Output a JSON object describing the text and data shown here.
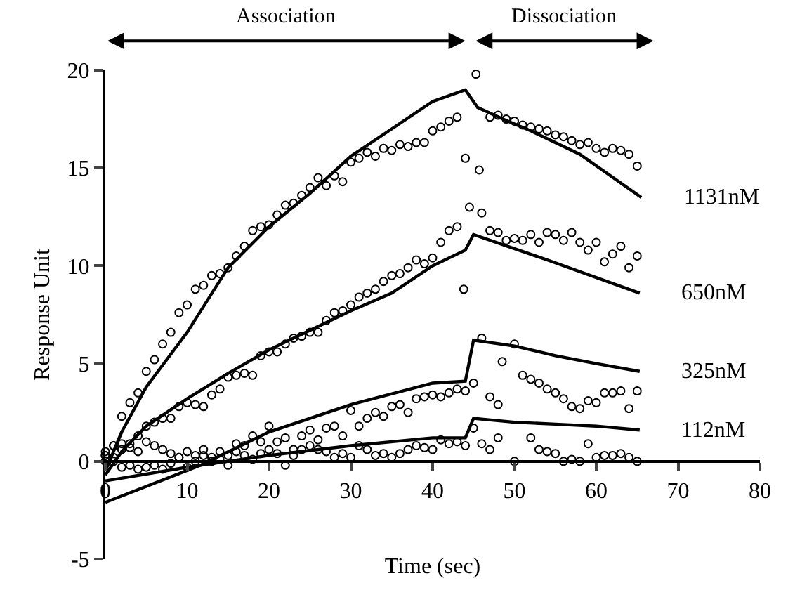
{
  "chart_data": {
    "type": "scatter",
    "xlabel": "Time (sec)",
    "ylabel": "Response Unit",
    "annotations": [
      "Association",
      "Dissociation"
    ],
    "xlim": [
      0,
      80
    ],
    "xticks": [
      0,
      10,
      20,
      30,
      40,
      50,
      60,
      70,
      80
    ],
    "ylim": [
      -5,
      20
    ],
    "yticks": [
      -5,
      0,
      5,
      10,
      15,
      20
    ],
    "legend": false,
    "marker": "circle",
    "series": [
      {
        "color": "#000000",
        "x": [
          0,
          1,
          2,
          3,
          4,
          5,
          6,
          7,
          8,
          9,
          10,
          11,
          12,
          13,
          14,
          15,
          16,
          17,
          18,
          19,
          20,
          21,
          22,
          23,
          24,
          25,
          26,
          27,
          28,
          29,
          30,
          31,
          32,
          33,
          34,
          35,
          36,
          37,
          38,
          39,
          40,
          41,
          42,
          43,
          44,
          45.3,
          45.7,
          47,
          48,
          49,
          50,
          51,
          52,
          53,
          54,
          55,
          56,
          57,
          58,
          59,
          60,
          61,
          62,
          63,
          64,
          65
        ],
        "values": [
          0.3,
          0.8,
          2.3,
          3.0,
          3.5,
          4.6,
          5.2,
          6.0,
          6.6,
          7.6,
          8.0,
          8.8,
          9.0,
          9.5,
          9.6,
          9.9,
          10.5,
          11.0,
          11.8,
          12.0,
          12.1,
          12.6,
          13.1,
          13.2,
          13.6,
          14.0,
          14.5,
          14.1,
          14.6,
          14.3,
          15.3,
          15.5,
          15.8,
          15.6,
          16.0,
          15.9,
          16.2,
          16.1,
          16.3,
          16.3,
          16.9,
          17.1,
          17.4,
          17.6,
          15.5,
          19.8,
          14.9,
          17.6,
          17.7,
          17.5,
          17.4,
          17.2,
          17.1,
          17.0,
          16.9,
          16.7,
          16.6,
          16.4,
          16.2,
          16.3,
          16.0,
          15.8,
          16.0,
          15.9,
          15.7,
          15.1
        ]
      },
      {
        "color": "#000000",
        "x": [
          0,
          1,
          2,
          3,
          4,
          5,
          6,
          7,
          8,
          9,
          10,
          11,
          12,
          13,
          14,
          15,
          16,
          17,
          18,
          19,
          20,
          21,
          22,
          23,
          24,
          25,
          26,
          27,
          28,
          29,
          30,
          31,
          32,
          33,
          34,
          35,
          36,
          37,
          38,
          39,
          40,
          41,
          42,
          43,
          43.8,
          44.5,
          46,
          47,
          48,
          49,
          50,
          51,
          52,
          53,
          54,
          55,
          56,
          57,
          58,
          59,
          60,
          61,
          62,
          63,
          64,
          65
        ],
        "values": [
          0.0,
          0.2,
          0.6,
          0.9,
          1.3,
          1.8,
          2.0,
          2.2,
          2.2,
          2.8,
          3.0,
          2.9,
          2.8,
          3.4,
          3.7,
          4.3,
          4.4,
          4.5,
          4.4,
          5.4,
          5.6,
          5.6,
          6.0,
          6.3,
          6.4,
          6.6,
          6.6,
          7.2,
          7.6,
          7.7,
          8.0,
          8.4,
          8.6,
          8.8,
          9.2,
          9.5,
          9.6,
          9.9,
          10.3,
          10.1,
          10.4,
          11.2,
          11.8,
          12.0,
          8.8,
          13.0,
          12.7,
          11.8,
          11.7,
          11.3,
          11.4,
          11.3,
          11.6,
          11.2,
          11.7,
          11.6,
          11.3,
          11.7,
          11.2,
          10.8,
          11.2,
          10.2,
          10.6,
          11.0,
          9.9,
          10.5
        ]
      },
      {
        "color": "#000000",
        "x": [
          0,
          1,
          2,
          3,
          4,
          5,
          6,
          7,
          8,
          9,
          10,
          11,
          12,
          13,
          14,
          15,
          16,
          17,
          18,
          19,
          20,
          21,
          22,
          23,
          24,
          25,
          26,
          27,
          28,
          29,
          30,
          31,
          32,
          33,
          34,
          35,
          36,
          37,
          38,
          39,
          40,
          41,
          42,
          43,
          44,
          45,
          46,
          47,
          48,
          48.5,
          50,
          51,
          52,
          53,
          54,
          55,
          56,
          57,
          58,
          59,
          60,
          61,
          62,
          63,
          64,
          65
        ],
        "values": [
          0.3,
          0.8,
          0.9,
          0.7,
          0.5,
          1.0,
          0.8,
          0.6,
          0.4,
          0.2,
          0.5,
          0.3,
          0.6,
          0.0,
          0.5,
          0.3,
          0.9,
          0.8,
          1.3,
          1.0,
          1.8,
          1.0,
          1.2,
          0.6,
          1.3,
          1.6,
          1.1,
          1.7,
          1.8,
          1.3,
          2.6,
          1.8,
          2.2,
          2.5,
          2.3,
          2.8,
          2.9,
          2.5,
          3.2,
          3.3,
          3.4,
          3.3,
          3.5,
          3.7,
          3.6,
          4.0,
          6.3,
          3.3,
          2.9,
          5.1,
          6.0,
          4.4,
          4.2,
          4.0,
          3.7,
          3.5,
          3.2,
          2.8,
          2.7,
          3.1,
          3.0,
          3.5,
          3.5,
          3.6,
          2.7,
          3.6
        ]
      },
      {
        "color": "#000000",
        "x": [
          0,
          1,
          2,
          3,
          4,
          5,
          6,
          7,
          8,
          9,
          10,
          11,
          12,
          13,
          14,
          15,
          16,
          17,
          18,
          19,
          20,
          21,
          22,
          23,
          24,
          25,
          26,
          27,
          28,
          29,
          30,
          31,
          32,
          33,
          34,
          35,
          36,
          37,
          38,
          39,
          40,
          41,
          42,
          43,
          44,
          45,
          46,
          47,
          48,
          50,
          52,
          53,
          54,
          55,
          56,
          57,
          58,
          59,
          60,
          61,
          62,
          63,
          64,
          65
        ],
        "values": [
          0.5,
          0.0,
          -0.3,
          -0.2,
          -0.4,
          -0.3,
          -0.2,
          -0.4,
          -0.1,
          0.2,
          -0.3,
          0.0,
          0.3,
          0.2,
          0.1,
          -0.2,
          0.5,
          0.3,
          0.1,
          0.4,
          0.6,
          0.4,
          -0.2,
          0.3,
          0.6,
          0.8,
          0.6,
          0.5,
          0.2,
          0.4,
          0.2,
          0.8,
          0.6,
          0.3,
          0.4,
          0.2,
          0.4,
          0.6,
          0.8,
          0.7,
          0.6,
          1.1,
          0.9,
          1.0,
          0.8,
          1.7,
          0.9,
          0.6,
          1.2,
          0.0,
          1.2,
          0.6,
          0.5,
          0.4,
          0.0,
          0.1,
          0.0,
          0.9,
          0.2,
          0.3,
          0.3,
          0.4,
          0.2,
          0.0
        ]
      },
      {
        "type": "line",
        "name": "1131nM",
        "color": "#000000",
        "marker": "none",
        "line_style": "solid",
        "x": [
          0,
          2,
          5,
          10,
          15,
          20,
          25,
          30,
          35,
          40,
          44,
          45.5,
          48.6,
          52,
          58,
          65.5
        ],
        "values": [
          -0.5,
          1.5,
          3.8,
          6.6,
          9.9,
          12.0,
          13.7,
          15.6,
          17.0,
          18.4,
          19.0,
          18.1,
          17.5,
          16.9,
          15.7,
          13.5
        ]
      },
      {
        "type": "line",
        "name": "650nM",
        "color": "#000000",
        "marker": "none",
        "line_style": "solid",
        "x": [
          0,
          2,
          5,
          10,
          15,
          20,
          25,
          30,
          35,
          40,
          44,
          45,
          54,
          65.3
        ],
        "values": [
          -0.7,
          0.5,
          1.8,
          3.2,
          4.5,
          5.7,
          6.7,
          7.7,
          8.6,
          10.0,
          10.8,
          11.6,
          10.3,
          8.6
        ]
      },
      {
        "type": "line",
        "name": "325nM",
        "color": "#000000",
        "marker": "none",
        "line_style": "solid",
        "x": [
          0,
          11.6,
          20,
          30,
          40,
          44,
          45,
          50,
          55,
          60,
          65.3
        ],
        "values": [
          -2.1,
          -0.2,
          1.5,
          2.9,
          4.0,
          4.1,
          6.2,
          5.9,
          5.4,
          5.0,
          4.6
        ]
      },
      {
        "type": "line",
        "name": "112nM",
        "color": "#000000",
        "marker": "none",
        "line_style": "solid",
        "x": [
          0,
          10,
          20,
          30,
          40,
          44,
          45,
          50,
          55,
          60,
          65.3
        ],
        "values": [
          -1.0,
          -0.3,
          0.3,
          0.8,
          1.2,
          1.2,
          2.2,
          2.0,
          1.9,
          1.8,
          1.6
        ]
      }
    ]
  }
}
